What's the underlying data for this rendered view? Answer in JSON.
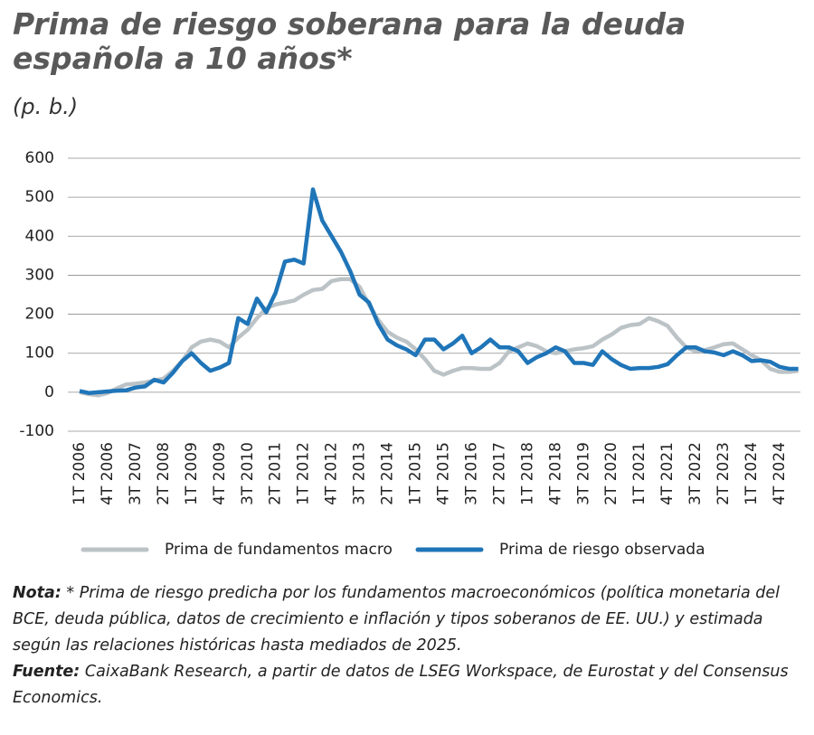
{
  "chart_data": {
    "type": "line",
    "title": "Prima de riesgo soberana para la deuda española a 10 años*",
    "subtitle": "(p. b.)",
    "categories": [
      "1T 2006",
      null,
      null,
      "4T 2006",
      null,
      null,
      "3T 2007",
      null,
      null,
      "2T 2008",
      null,
      null,
      "1T 2009",
      null,
      null,
      "4T 2009",
      null,
      null,
      "3T 2010",
      null,
      null,
      "2T 2011",
      null,
      null,
      "1T 2012",
      null,
      null,
      "4T 2012",
      null,
      null,
      "3T 2013",
      null,
      null,
      "2T 2014",
      null,
      null,
      "1T 2015",
      null,
      null,
      "4T 2015",
      null,
      null,
      "3T 2016",
      null,
      null,
      "2T 2017",
      null,
      null,
      "1T 2018",
      null,
      null,
      "4T 2018",
      null,
      null,
      "3T 2019",
      null,
      null,
      "2T 2020",
      null,
      null,
      "1T 2021",
      null,
      null,
      "4T 2021",
      null,
      null,
      "3T 2022",
      null,
      null,
      "2T 2023",
      null,
      null,
      "1T 2024",
      null,
      null,
      "4T 2024",
      null,
      null
    ],
    "series": [
      {
        "name": "Prima de fundamentos macro",
        "color": "#bcc3c7",
        "values": [
          0,
          -5,
          -8,
          -2,
          10,
          20,
          22,
          25,
          30,
          35,
          55,
          80,
          115,
          130,
          135,
          130,
          115,
          140,
          160,
          190,
          215,
          225,
          230,
          235,
          250,
          262,
          265,
          285,
          290,
          290,
          270,
          225,
          185,
          155,
          140,
          130,
          110,
          85,
          55,
          45,
          55,
          62,
          62,
          60,
          60,
          75,
          105,
          115,
          125,
          118,
          105,
          100,
          105,
          110,
          113,
          118,
          135,
          148,
          165,
          172,
          175,
          190,
          182,
          170,
          140,
          115,
          105,
          108,
          115,
          123,
          125,
          110,
          95,
          82,
          60,
          52,
          52,
          55
        ]
      },
      {
        "name": "Prima de riesgo observada",
        "color": "#1f75b8",
        "values": [
          3,
          -2,
          0,
          2,
          4,
          5,
          12,
          15,
          32,
          25,
          50,
          80,
          100,
          75,
          55,
          63,
          75,
          190,
          175,
          240,
          205,
          255,
          335,
          340,
          330,
          520,
          440,
          400,
          360,
          310,
          250,
          230,
          175,
          135,
          120,
          110,
          95,
          135,
          135,
          110,
          125,
          145,
          100,
          115,
          135,
          115,
          115,
          105,
          75,
          90,
          100,
          115,
          105,
          75,
          75,
          70,
          105,
          85,
          70,
          60,
          62,
          62,
          65,
          72,
          95,
          115,
          115,
          105,
          102,
          95,
          105,
          95,
          80,
          82,
          78,
          65,
          60,
          60
        ]
      }
    ],
    "ylim": [
      -100,
      600
    ],
    "yticks": [
      -100,
      0,
      100,
      200,
      300,
      400,
      500,
      600
    ],
    "grid": true,
    "note": {
      "label": "Nota:",
      "text": "* Prima de riesgo predicha por los fundamentos macroeconómicos (política monetaria del BCE,  deuda pública, datos de crecimiento e inflación y tipos soberanos de EE. UU.) y estimada según las relaciones históricas hasta mediados de 2025."
    },
    "source": {
      "label": "Fuente:",
      "text": "CaixaBank Research, a partir de datos de LSEG Workspace, de Eurostat y del Consensus Economics."
    }
  }
}
